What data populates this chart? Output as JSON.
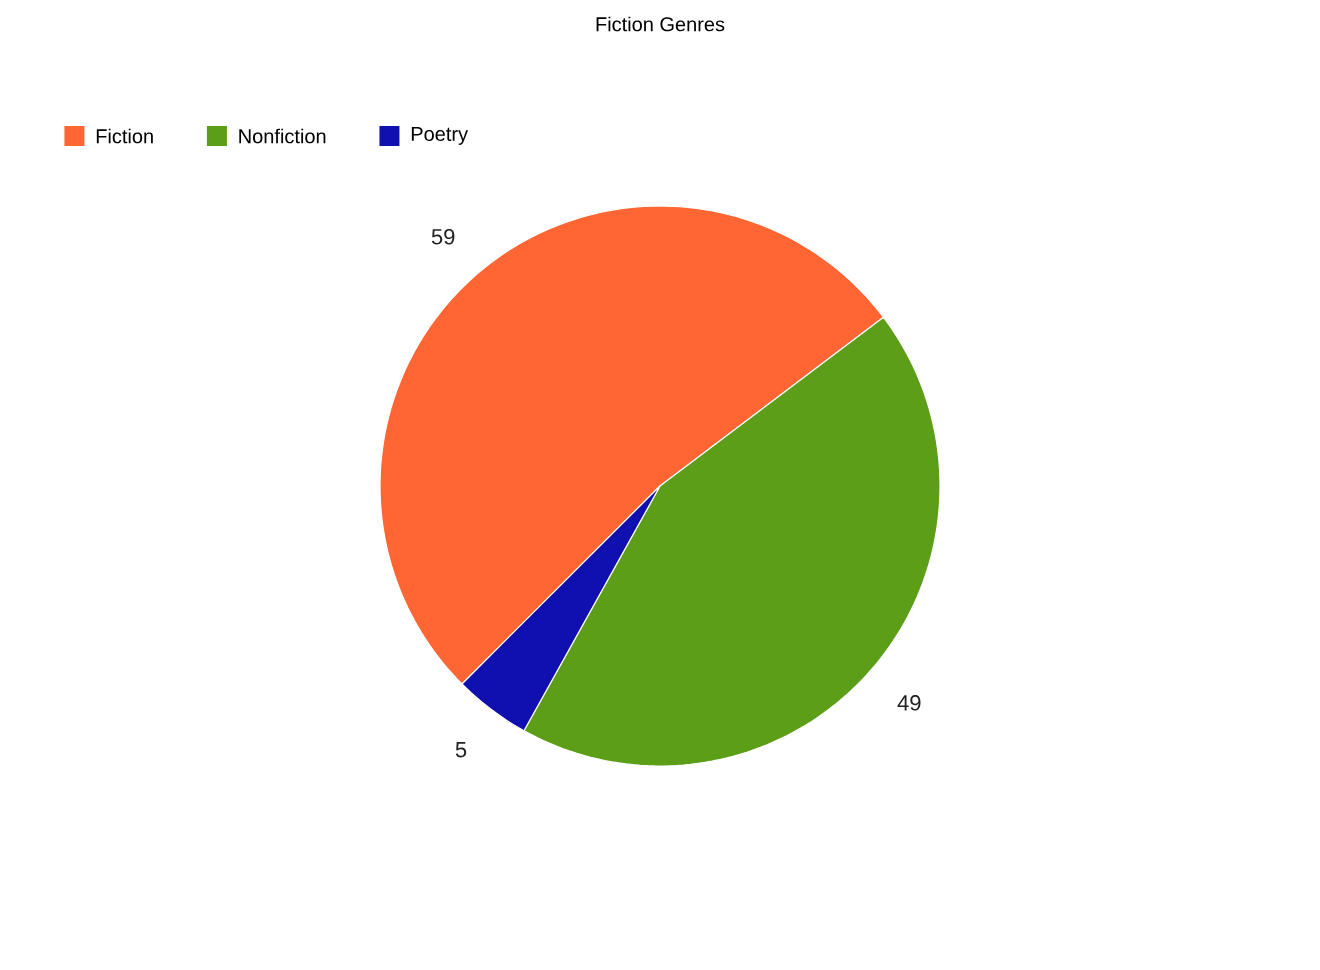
{
  "chart_data": {
    "type": "pie",
    "title": "Fiction Genres",
    "categories": [
      "Fiction",
      "Nonfiction",
      "Poetry"
    ],
    "values": [
      59,
      49,
      5
    ],
    "colors": [
      "#ff6633",
      "#5c9e18",
      "#1010b0"
    ],
    "data_labels": true,
    "legend": "top left"
  }
}
